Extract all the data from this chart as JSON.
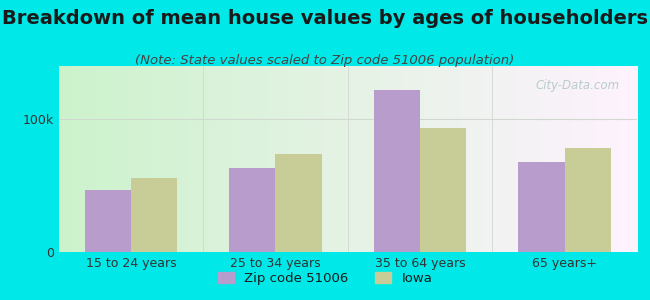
{
  "title": "Breakdown of mean house values by ages of householders",
  "subtitle": "(Note: State values scaled to Zip code 51006 population)",
  "categories": [
    "15 to 24 years",
    "25 to 34 years",
    "35 to 64 years",
    "65 years+"
  ],
  "zip_values": [
    47000,
    63000,
    122000,
    68000
  ],
  "iowa_values": [
    56000,
    74000,
    93000,
    78000
  ],
  "zip_color": "#b89dcc",
  "iowa_color": "#c8cc96",
  "background_outer": "#00e8e8",
  "ylim": [
    0,
    140000
  ],
  "yticks": [
    0,
    100000
  ],
  "ytick_labels": [
    "0",
    "100k"
  ],
  "legend_zip_label": "Zip code 51006",
  "legend_iowa_label": "Iowa",
  "bar_width": 0.32,
  "title_fontsize": 14,
  "subtitle_fontsize": 9.5,
  "axis_fontsize": 9,
  "legend_fontsize": 9.5,
  "title_color": "#1a1a1a",
  "subtitle_color": "#444444",
  "tick_color": "#333333",
  "watermark_color": "#b0c8c8",
  "hline_color": "#d0d8d0"
}
